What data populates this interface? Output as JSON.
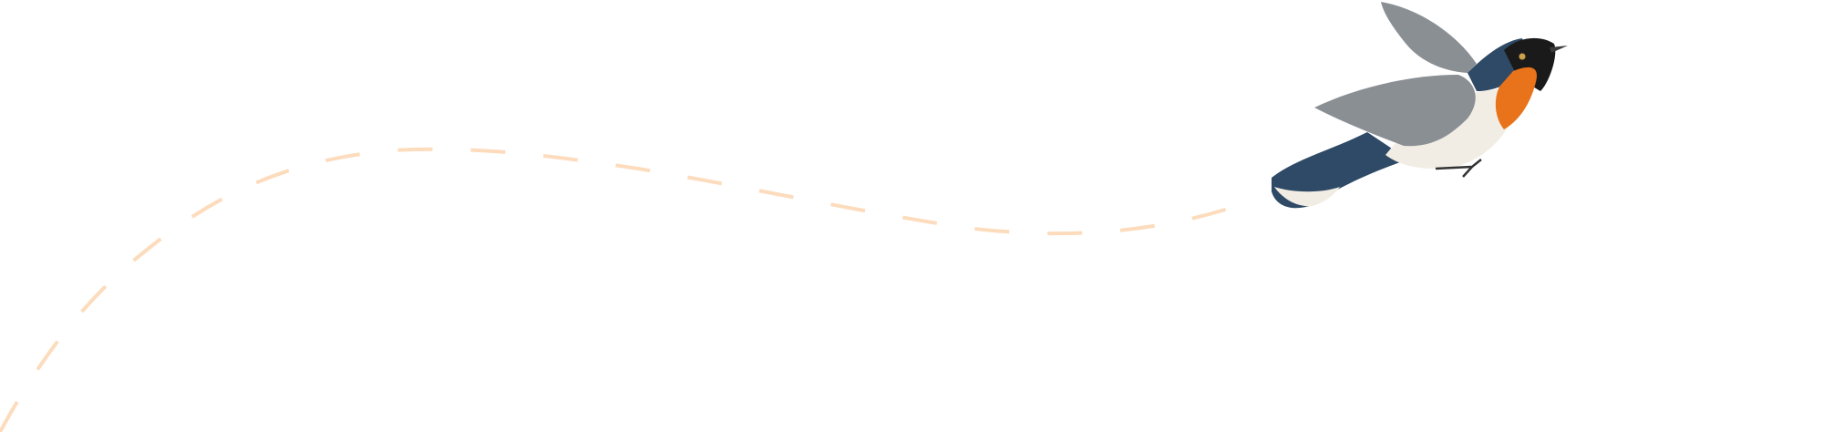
{
  "illustration": {
    "subject": "bird-icon",
    "path_style": "dashed",
    "colors": {
      "background": "#ffffff",
      "dash": "#fcdcbd",
      "bird_back": "#2f4a66",
      "bird_throat": "#e8731a",
      "bird_belly": "#f2ede4",
      "bird_wing": "#8a8f94",
      "bird_head": "#1a1a1a"
    }
  }
}
